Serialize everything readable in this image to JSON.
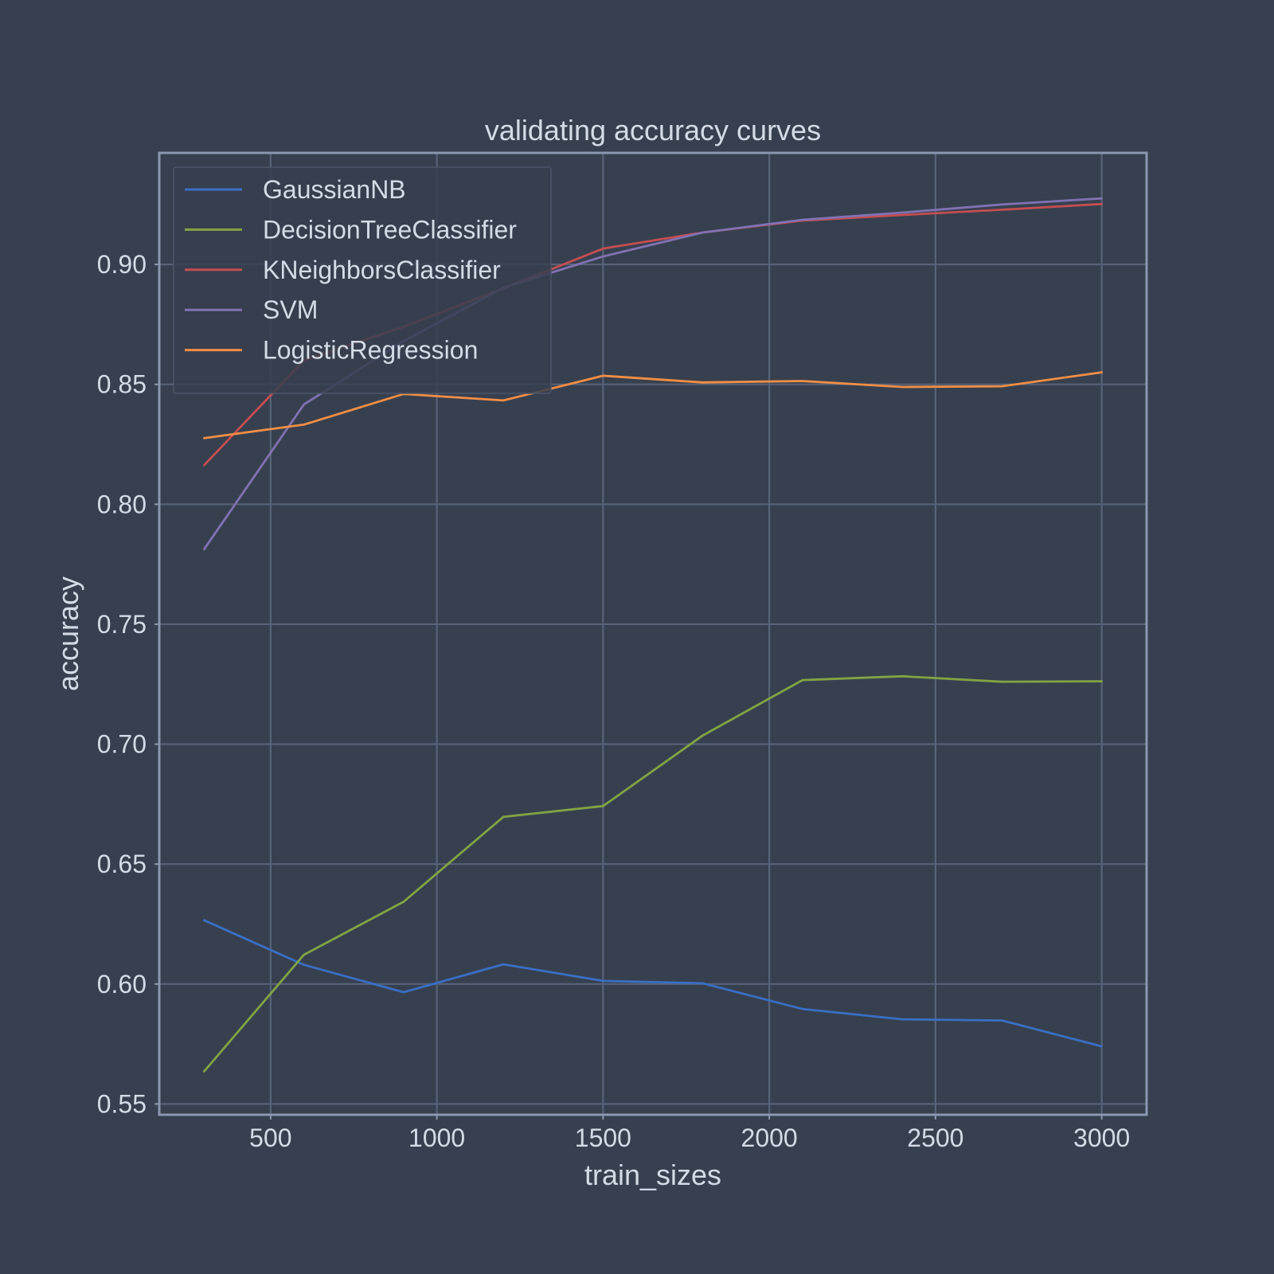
{
  "chart_data": {
    "type": "line",
    "title": "validating accuracy curves",
    "xlabel": "train_sizes",
    "ylabel": "accuracy",
    "xlim": [
      165,
      3135
    ],
    "ylim": [
      0.5455,
      0.9465
    ],
    "xticks": [
      500,
      1000,
      1500,
      2000,
      2500,
      3000
    ],
    "xtick_labels": [
      "500",
      "1000",
      "1500",
      "2000",
      "2500",
      "3000"
    ],
    "yticks": [
      0.55,
      0.6,
      0.65,
      0.7,
      0.75,
      0.8,
      0.85,
      0.9
    ],
    "ytick_labels": [
      "0.55",
      "0.60",
      "0.65",
      "0.70",
      "0.75",
      "0.80",
      "0.85",
      "0.90"
    ],
    "grid": true,
    "legend_position": "top-left",
    "x": [
      300,
      600,
      900,
      1200,
      1500,
      1800,
      2100,
      2400,
      2700,
      3000
    ],
    "series": [
      {
        "name": "GaussianNB",
        "color": "#3a6fc4",
        "values": [
          0.6266,
          0.608,
          0.5966,
          0.6082,
          0.6013,
          0.6003,
          0.5896,
          0.5853,
          0.5848,
          0.574
        ]
      },
      {
        "name": "DecisionTreeClassifier",
        "color": "#82a444",
        "values": [
          0.5636,
          0.6122,
          0.6343,
          0.6697,
          0.6742,
          0.7036,
          0.7267,
          0.7283,
          0.726,
          0.7262
        ]
      },
      {
        "name": "KNeighborsClassifier",
        "color": "#c44e52",
        "values": [
          0.8163,
          0.86,
          0.874,
          0.89,
          0.9066,
          0.9133,
          0.9183,
          0.9206,
          0.9228,
          0.9252
        ]
      },
      {
        "name": "SVM",
        "color": "#8172b3",
        "values": [
          0.7813,
          0.8416,
          0.868,
          0.8903,
          0.9033,
          0.9133,
          0.9186,
          0.9216,
          0.925,
          0.9275
        ]
      },
      {
        "name": "LogisticRegression",
        "color": "#f28e45",
        "values": [
          0.8276,
          0.8332,
          0.846,
          0.8433,
          0.8536,
          0.8508,
          0.8514,
          0.8489,
          0.8492,
          0.855
        ]
      }
    ]
  }
}
